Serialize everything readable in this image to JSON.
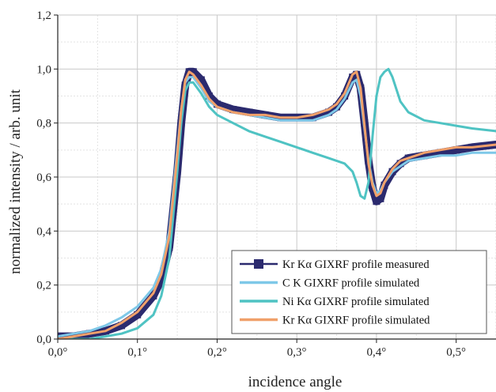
{
  "chart_data": {
    "type": "line",
    "xlabel": "incidence angle",
    "ylabel": "normalized intensity / arb. unit",
    "xlim": [
      0,
      0.55
    ],
    "ylim": [
      0,
      1.2
    ],
    "x_ticks": [
      0,
      0.1,
      0.2,
      0.3,
      0.4,
      0.5
    ],
    "x_tick_labels": [
      "0,0°",
      "0,1°",
      "0,2°",
      "0,3°",
      "0,4°",
      "0,5°"
    ],
    "y_ticks": [
      0,
      0.2,
      0.4,
      0.6,
      0.8,
      1.0,
      1.2
    ],
    "y_tick_labels": [
      "0,0",
      "0,2",
      "0,4",
      "0,6",
      "0,8",
      "1,0",
      "1,2"
    ],
    "grid": true,
    "legend_position": "bottom-right",
    "series": [
      {
        "name": "Kr Kα GIXRF profile measured",
        "style": "markers-line",
        "color": "#2b2a6e",
        "x": [
          0.0,
          0.02,
          0.04,
          0.06,
          0.08,
          0.1,
          0.12,
          0.13,
          0.14,
          0.15,
          0.155,
          0.16,
          0.165,
          0.17,
          0.18,
          0.19,
          0.2,
          0.22,
          0.24,
          0.26,
          0.28,
          0.3,
          0.32,
          0.34,
          0.35,
          0.36,
          0.37,
          0.375,
          0.38,
          0.385,
          0.39,
          0.395,
          0.4,
          0.405,
          0.41,
          0.42,
          0.43,
          0.44,
          0.46,
          0.48,
          0.5,
          0.52,
          0.55
        ],
        "y": [
          0.01,
          0.01,
          0.02,
          0.03,
          0.05,
          0.09,
          0.16,
          0.22,
          0.34,
          0.62,
          0.8,
          0.94,
          0.99,
          0.99,
          0.96,
          0.9,
          0.87,
          0.85,
          0.84,
          0.83,
          0.82,
          0.82,
          0.82,
          0.84,
          0.86,
          0.9,
          0.97,
          0.98,
          0.93,
          0.8,
          0.66,
          0.56,
          0.51,
          0.52,
          0.57,
          0.62,
          0.65,
          0.67,
          0.68,
          0.69,
          0.7,
          0.71,
          0.72
        ]
      },
      {
        "name": "C K GIXRF profile simulated",
        "style": "line",
        "color": "#7ec8e8",
        "x": [
          0.0,
          0.02,
          0.04,
          0.06,
          0.08,
          0.1,
          0.12,
          0.13,
          0.14,
          0.15,
          0.155,
          0.16,
          0.165,
          0.17,
          0.18,
          0.19,
          0.2,
          0.22,
          0.24,
          0.26,
          0.28,
          0.3,
          0.32,
          0.34,
          0.35,
          0.36,
          0.37,
          0.375,
          0.38,
          0.385,
          0.39,
          0.395,
          0.4,
          0.405,
          0.41,
          0.42,
          0.43,
          0.44,
          0.46,
          0.48,
          0.5,
          0.52,
          0.55
        ],
        "y": [
          0.01,
          0.02,
          0.03,
          0.05,
          0.08,
          0.12,
          0.19,
          0.26,
          0.4,
          0.7,
          0.85,
          0.95,
          0.97,
          0.97,
          0.93,
          0.88,
          0.86,
          0.84,
          0.83,
          0.82,
          0.81,
          0.81,
          0.81,
          0.83,
          0.85,
          0.89,
          0.95,
          0.96,
          0.9,
          0.78,
          0.66,
          0.58,
          0.54,
          0.55,
          0.58,
          0.62,
          0.64,
          0.66,
          0.67,
          0.68,
          0.68,
          0.69,
          0.69
        ]
      },
      {
        "name": "Ni Kα GIXRF profile simulated",
        "style": "line",
        "color": "#4fc3c3",
        "x": [
          0.0,
          0.02,
          0.04,
          0.06,
          0.08,
          0.1,
          0.12,
          0.13,
          0.14,
          0.15,
          0.155,
          0.16,
          0.165,
          0.17,
          0.18,
          0.19,
          0.2,
          0.22,
          0.24,
          0.26,
          0.28,
          0.3,
          0.32,
          0.34,
          0.36,
          0.37,
          0.375,
          0.38,
          0.385,
          0.39,
          0.395,
          0.4,
          0.405,
          0.41,
          0.415,
          0.42,
          0.43,
          0.44,
          0.46,
          0.48,
          0.5,
          0.52,
          0.55
        ],
        "y": [
          0.0,
          0.0,
          0.0,
          0.01,
          0.02,
          0.04,
          0.09,
          0.16,
          0.3,
          0.62,
          0.8,
          0.92,
          0.95,
          0.95,
          0.91,
          0.86,
          0.83,
          0.8,
          0.77,
          0.75,
          0.73,
          0.71,
          0.69,
          0.67,
          0.65,
          0.62,
          0.58,
          0.53,
          0.52,
          0.58,
          0.75,
          0.9,
          0.97,
          0.99,
          1.0,
          0.97,
          0.88,
          0.84,
          0.81,
          0.8,
          0.79,
          0.78,
          0.77
        ]
      },
      {
        "name": "Kr Kα GIXRF profile simulated",
        "style": "line",
        "color": "#f0a06a",
        "x": [
          0.0,
          0.02,
          0.04,
          0.06,
          0.08,
          0.1,
          0.12,
          0.13,
          0.14,
          0.15,
          0.155,
          0.16,
          0.165,
          0.17,
          0.18,
          0.19,
          0.2,
          0.22,
          0.24,
          0.26,
          0.28,
          0.3,
          0.32,
          0.34,
          0.35,
          0.36,
          0.37,
          0.375,
          0.38,
          0.385,
          0.39,
          0.395,
          0.4,
          0.405,
          0.41,
          0.42,
          0.43,
          0.44,
          0.46,
          0.48,
          0.5,
          0.52,
          0.55
        ],
        "y": [
          0.0,
          0.01,
          0.02,
          0.03,
          0.06,
          0.1,
          0.17,
          0.24,
          0.38,
          0.68,
          0.85,
          0.96,
          0.99,
          0.98,
          0.94,
          0.89,
          0.86,
          0.84,
          0.83,
          0.83,
          0.82,
          0.82,
          0.83,
          0.85,
          0.87,
          0.91,
          0.98,
          0.99,
          0.93,
          0.79,
          0.65,
          0.57,
          0.53,
          0.54,
          0.58,
          0.63,
          0.66,
          0.67,
          0.69,
          0.7,
          0.71,
          0.71,
          0.72
        ]
      }
    ]
  }
}
